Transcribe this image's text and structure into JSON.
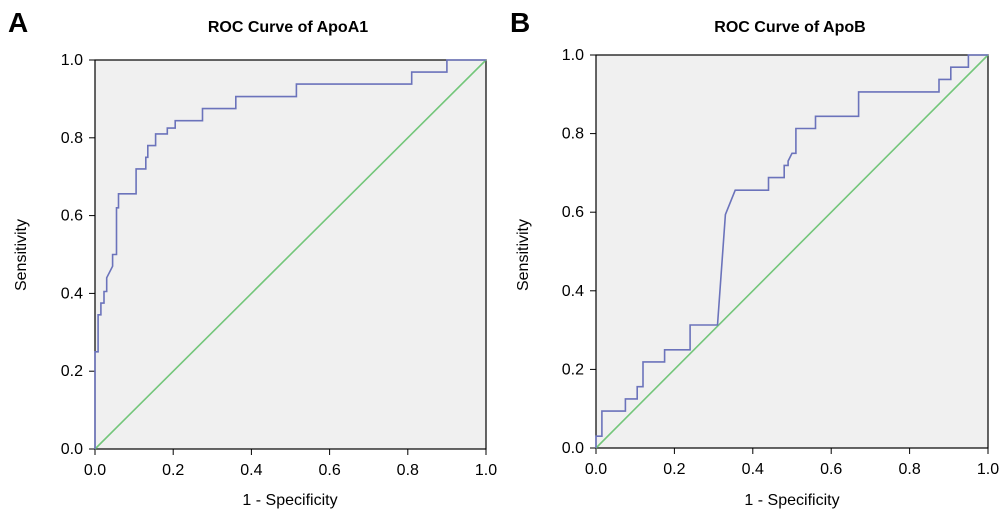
{
  "colors": {
    "plot_bg": "#f0f0f0",
    "roc_curve": "#6b73bb",
    "reference_line": "#73c67a",
    "frame": "#000000"
  },
  "chart_data": [
    {
      "panel": "A",
      "type": "line",
      "title": "ROC Curve of ApoA1",
      "xlabel": "1 - Specificity",
      "ylabel": "Sensitivity",
      "xlim": [
        0,
        1
      ],
      "ylim": [
        0,
        1
      ],
      "xticks": [
        "0.0",
        "0.2",
        "0.4",
        "0.6",
        "0.8",
        "1.0"
      ],
      "yticks": [
        "0.0",
        "0.2",
        "0.4",
        "0.6",
        "0.8",
        "1.0"
      ],
      "grid": false,
      "series": [
        {
          "x": [
            0,
            0,
            0.008,
            0.008,
            0.015,
            0.015,
            0.023,
            0.023,
            0.03,
            0.03,
            0.045,
            0.045,
            0.055,
            0.055,
            0.06,
            0.06,
            0.105,
            0.105,
            0.13,
            0.13,
            0.135,
            0.135,
            0.155,
            0.155,
            0.185,
            0.185,
            0.205,
            0.205,
            0.275,
            0.275,
            0.36,
            0.36,
            0.515,
            0.515,
            0.81,
            0.81,
            0.9,
            0.9,
            1.0
          ],
          "y": [
            0,
            0.25,
            0.25,
            0.345,
            0.345,
            0.375,
            0.375,
            0.405,
            0.405,
            0.44,
            0.47,
            0.5,
            0.5,
            0.62,
            0.62,
            0.656,
            0.656,
            0.72,
            0.72,
            0.75,
            0.75,
            0.78,
            0.78,
            0.81,
            0.81,
            0.825,
            0.825,
            0.844,
            0.844,
            0.875,
            0.875,
            0.906,
            0.906,
            0.938,
            0.938,
            0.969,
            0.969,
            1.0,
            1.0
          ]
        },
        {
          "x": [
            0,
            1
          ],
          "y": [
            0,
            1
          ]
        }
      ]
    },
    {
      "panel": "B",
      "type": "line",
      "title": "ROC Curve of ApoB",
      "xlabel": "1 - Specificity",
      "ylabel": "Sensitivity",
      "xlim": [
        0,
        1
      ],
      "ylim": [
        0,
        1
      ],
      "xticks": [
        "0.0",
        "0.2",
        "0.4",
        "0.6",
        "0.8",
        "1.0"
      ],
      "yticks": [
        "0.0",
        "0.2",
        "0.4",
        "0.6",
        "0.8",
        "1.0"
      ],
      "grid": false,
      "series": [
        {
          "x": [
            0,
            0,
            0.015,
            0.015,
            0.075,
            0.075,
            0.105,
            0.105,
            0.12,
            0.12,
            0.175,
            0.175,
            0.185,
            0.185,
            0.24,
            0.24,
            0.31,
            0.33,
            0.33,
            0.355,
            0.355,
            0.44,
            0.44,
            0.455,
            0.455,
            0.48,
            0.48,
            0.49,
            0.49,
            0.5,
            0.51,
            0.51,
            0.56,
            0.56,
            0.6,
            0.6,
            0.67,
            0.67,
            0.83,
            0.83,
            0.875,
            0.875,
            0.905,
            0.905,
            0.95,
            0.95,
            1.0
          ],
          "y": [
            0,
            0.03,
            0.03,
            0.094,
            0.094,
            0.125,
            0.125,
            0.156,
            0.156,
            0.219,
            0.219,
            0.25,
            0.25,
            0.25,
            0.25,
            0.313,
            0.313,
            0.594,
            0.594,
            0.656,
            0.656,
            0.656,
            0.688,
            0.688,
            0.688,
            0.688,
            0.719,
            0.719,
            0.73,
            0.75,
            0.75,
            0.813,
            0.813,
            0.844,
            0.844,
            0.844,
            0.844,
            0.906,
            0.906,
            0.906,
            0.906,
            0.938,
            0.938,
            0.969,
            0.969,
            1.0,
            1.0
          ]
        },
        {
          "x": [
            0,
            1
          ],
          "y": [
            0,
            1
          ]
        }
      ]
    }
  ]
}
